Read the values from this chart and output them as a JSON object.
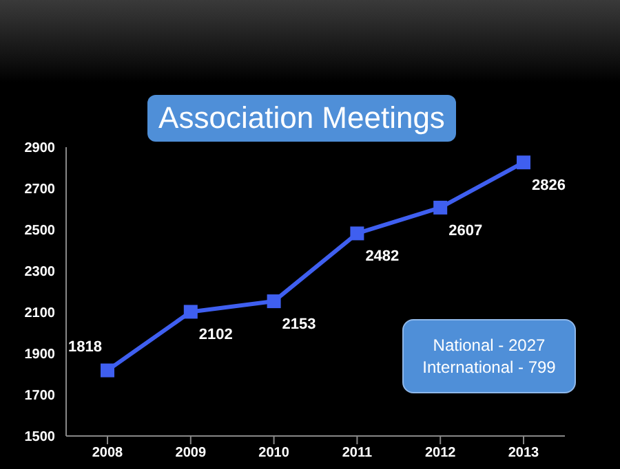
{
  "chart_data": {
    "type": "line",
    "title": "Association Meetings",
    "categories": [
      "2008",
      "2009",
      "2010",
      "2011",
      "2012",
      "2013"
    ],
    "series": [
      {
        "color": "#3f5ff0",
        "values": [
          1818,
          2102,
          2153,
          2482,
          2607,
          2826
        ]
      }
    ],
    "ylim": [
      1500,
      2900
    ],
    "yticks": [
      1500,
      1700,
      1900,
      2100,
      2300,
      2500,
      2700,
      2900
    ],
    "marker": "square",
    "data_labels": true,
    "grid": false,
    "legend": false,
    "annotations": [
      "National - 2027\nInternational - 799"
    ]
  }
}
